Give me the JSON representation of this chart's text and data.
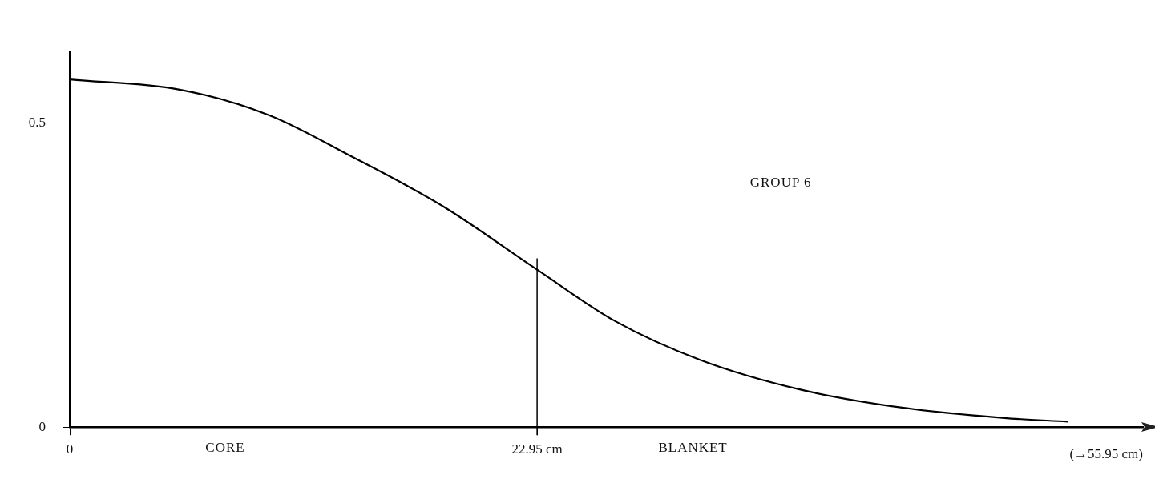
{
  "chart_data": {
    "type": "line",
    "x": [
      0,
      5.45,
      9.81,
      13.8,
      18.34,
      22.95,
      26.8,
      31.0,
      35.84,
      40.87,
      45.9,
      49.0
    ],
    "series": [
      {
        "color": "#000000",
        "values": [
          0.572,
          0.555,
          0.513,
          0.446,
          0.363,
          0.259,
          0.174,
          0.11,
          0.062,
          0.032,
          0.015,
          0.009
        ]
      }
    ],
    "xlim": [
      0,
      52.7
    ],
    "xticks": [
      0,
      {
        "value": 22.95,
        "label": "22.95 cm"
      }
    ],
    "xlabel": "(→55.95 cm)",
    "ylim": [
      0,
      0.617
    ],
    "yticks": [
      0,
      0.5
    ],
    "ref_lines": [
      {
        "axis": "x",
        "value": 22.95
      }
    ],
    "annotations": [
      "CORE",
      "BLANKET",
      "GROUP 6"
    ],
    "grid": false,
    "legend": false,
    "marker": "none",
    "line_style": "solid"
  }
}
